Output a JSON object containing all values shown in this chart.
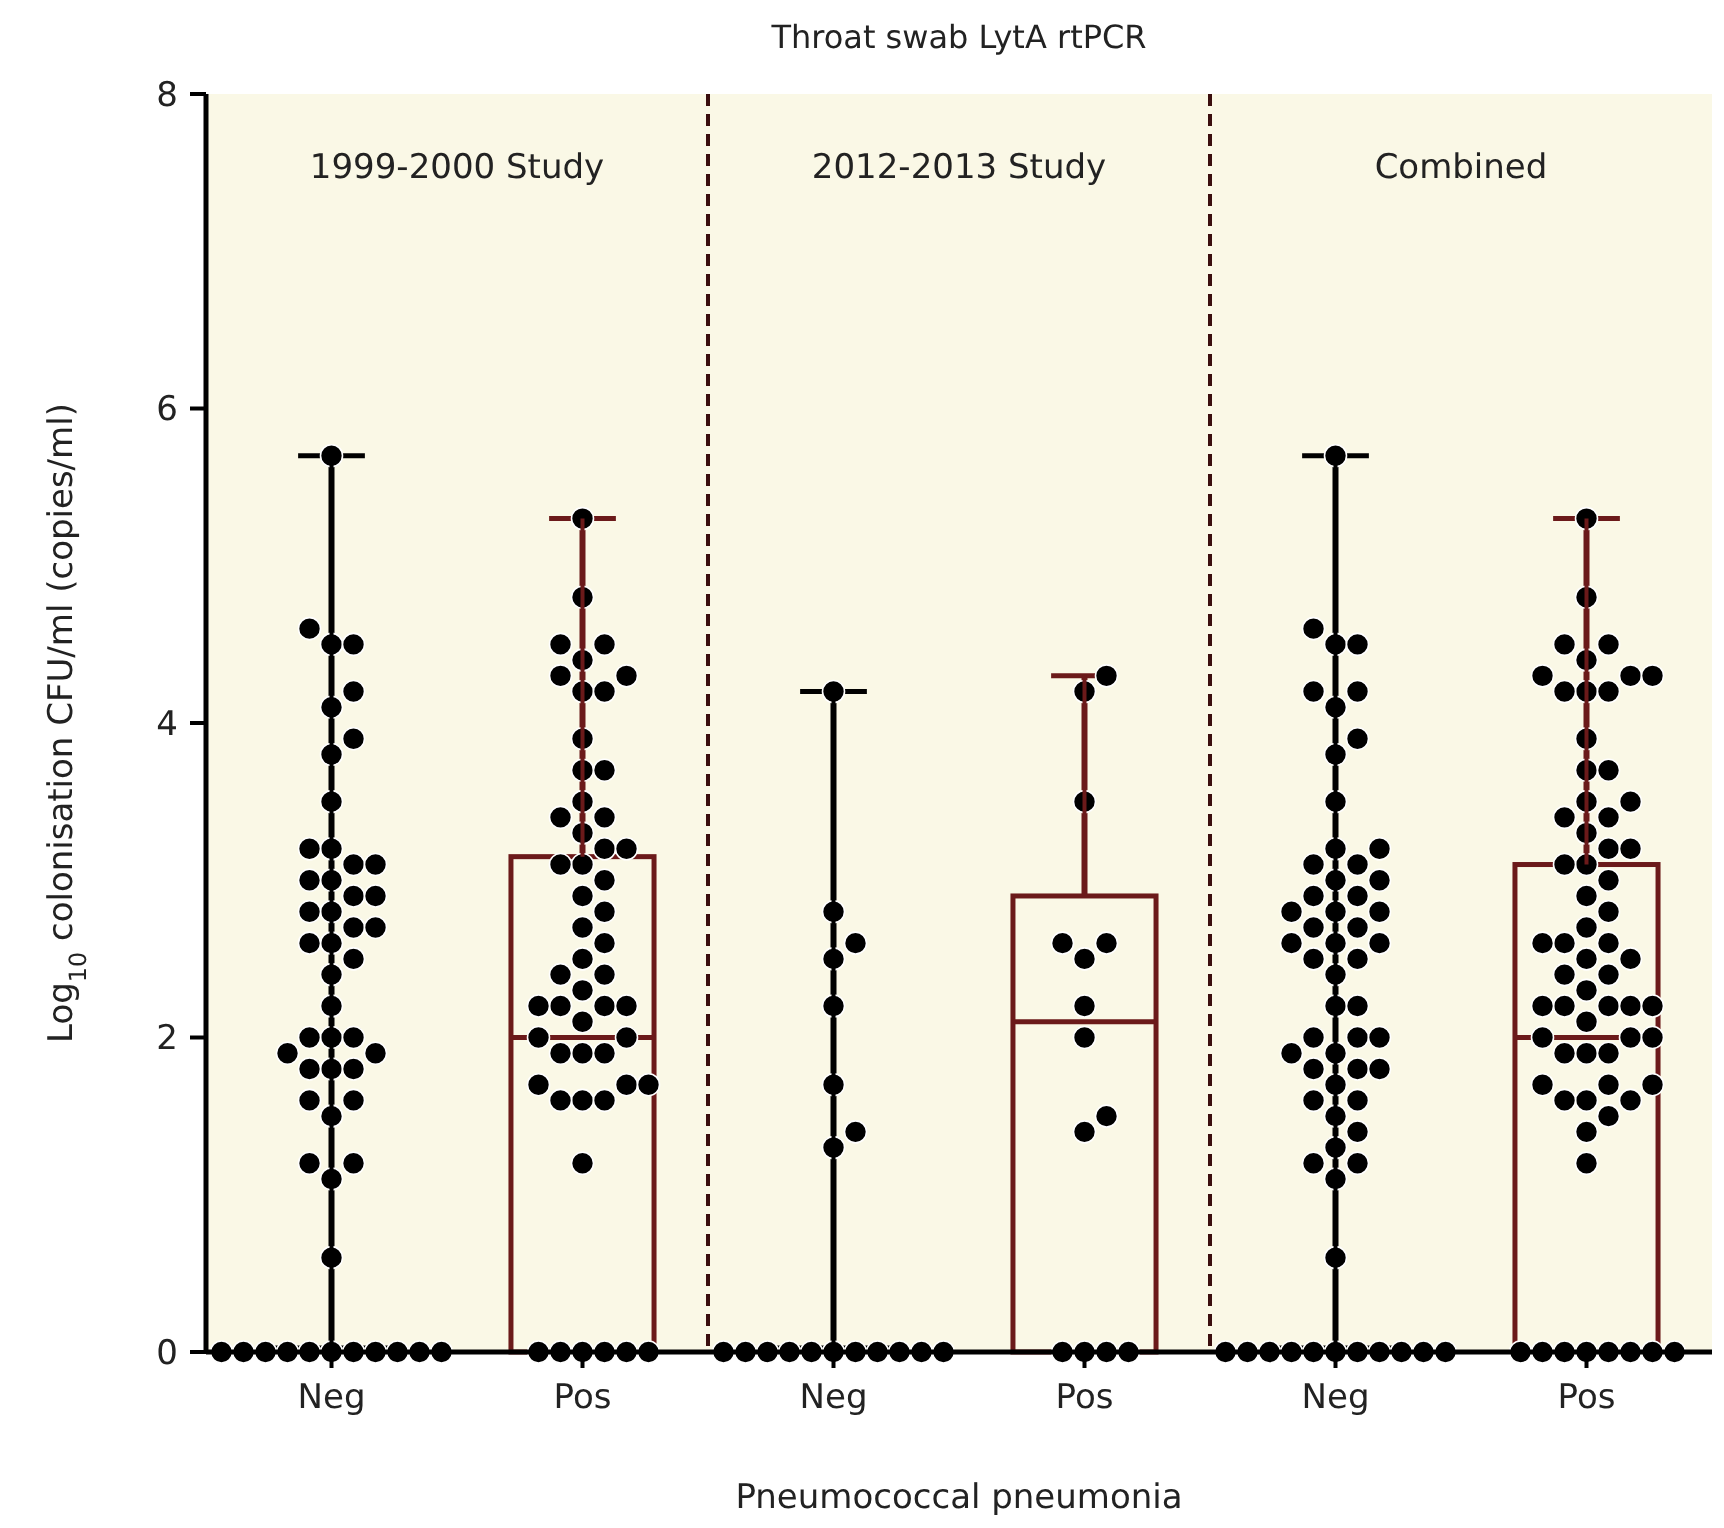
{
  "chart_data": [
    {
      "type": "box",
      "subtitle": "1999-2000 Study",
      "ylabel": "Log$_{10}$ colonisation CFU/ml (copies/ml)",
      "categories": [
        "Neg",
        "Pos"
      ],
      "ylim": [
        0,
        8
      ],
      "yticks": [
        0,
        2,
        4,
        6,
        8
      ],
      "series": [
        {
          "type": "box",
          "colors": [
            "#000000",
            "#6b1a1a"
          ],
          "boxes": [
            {
              "low": 0,
              "q1": 0,
              "median": 0,
              "q3": 0,
              "high": 5.7
            },
            {
              "low": 0,
              "q1": 0,
              "median": 2.0,
              "q3": 3.15,
              "high": 5.3
            }
          ]
        },
        {
          "type": "scatter",
          "color": "#000000",
          "x": [
            "Neg",
            "Neg",
            "Neg",
            "Neg",
            "Neg",
            "Neg",
            "Neg",
            "Neg",
            "Neg",
            "Neg",
            "Neg",
            "Neg",
            "Neg",
            "Neg",
            "Neg",
            "Neg",
            "Neg",
            "Neg",
            "Neg",
            "Neg",
            "Neg",
            "Neg",
            "Neg",
            "Neg",
            "Neg",
            "Neg",
            "Neg",
            "Neg",
            "Neg",
            "Neg",
            "Neg",
            "Neg",
            "Neg",
            "Neg",
            "Neg",
            "Neg",
            "Neg",
            "Neg",
            "Neg",
            "Neg",
            "Neg",
            "Neg",
            "Neg",
            "Neg",
            "Neg",
            "Neg",
            "Neg",
            "Neg",
            "Neg",
            "Neg",
            "Neg",
            "Neg"
          ],
          "values": [
            5.7,
            4.6,
            4.5,
            4.5,
            4.2,
            4.1,
            3.9,
            3.8,
            3.5,
            3.2,
            3.2,
            3.1,
            3.1,
            3.0,
            3.0,
            2.9,
            2.9,
            2.8,
            2.8,
            2.7,
            2.7,
            2.6,
            2.6,
            2.5,
            2.4,
            2.2,
            2.0,
            2.0,
            2.0,
            1.9,
            1.9,
            1.8,
            1.8,
            1.8,
            1.6,
            1.6,
            1.5,
            1.2,
            1.2,
            1.1,
            0.6,
            0,
            0,
            0,
            0,
            0,
            0,
            0,
            0,
            0,
            0,
            0
          ]
        },
        {
          "type": "scatter",
          "color": "#000000",
          "x": [
            "Pos",
            "Pos",
            "Pos",
            "Pos",
            "Pos",
            "Pos",
            "Pos",
            "Pos",
            "Pos",
            "Pos",
            "Pos",
            "Pos",
            "Pos",
            "Pos",
            "Pos",
            "Pos",
            "Pos",
            "Pos",
            "Pos",
            "Pos",
            "Pos",
            "Pos",
            "Pos",
            "Pos",
            "Pos",
            "Pos",
            "Pos",
            "Pos",
            "Pos",
            "Pos",
            "Pos",
            "Pos",
            "Pos",
            "Pos",
            "Pos",
            "Pos",
            "Pos",
            "Pos",
            "Pos",
            "Pos",
            "Pos",
            "Pos",
            "Pos",
            "Pos",
            "Pos",
            "Pos",
            "Pos",
            "Pos",
            "Pos",
            "Pos",
            "Pos",
            "Pos"
          ],
          "values": [
            5.3,
            4.8,
            4.5,
            4.5,
            4.4,
            4.3,
            4.3,
            4.2,
            4.2,
            3.9,
            3.7,
            3.7,
            3.5,
            3.4,
            3.4,
            3.3,
            3.2,
            3.2,
            3.1,
            3.1,
            3.0,
            2.9,
            2.8,
            2.7,
            2.6,
            2.5,
            2.4,
            2.4,
            2.3,
            2.2,
            2.2,
            2.2,
            2.2,
            2.1,
            2.0,
            2.0,
            1.9,
            1.9,
            1.9,
            1.7,
            1.7,
            1.7,
            1.6,
            1.6,
            1.6,
            1.2,
            0,
            0,
            0,
            0,
            0,
            0
          ]
        }
      ]
    },
    {
      "type": "box",
      "title": "Throat swab LytA rtPCR",
      "subtitle": "2012-2013 Study",
      "xlabel": "Pneumococcal pneumonia",
      "categories": [
        "Neg",
        "Pos"
      ],
      "ylim": [
        0,
        8
      ],
      "tick_labels": "x",
      "series": [
        {
          "type": "box",
          "colors": [
            "#000000",
            "#6b1a1a"
          ],
          "boxes": [
            {
              "low": 0,
              "q1": 0,
              "median": 0,
              "q3": 0,
              "high": 4.2
            },
            {
              "low": 0,
              "q1": 0,
              "median": 2.1,
              "q3": 2.9,
              "high": 4.3
            }
          ]
        },
        {
          "type": "scatter",
          "color": "#000000",
          "x": [
            "Neg",
            "Neg",
            "Neg",
            "Neg",
            "Neg",
            "Neg",
            "Neg",
            "Neg",
            "Neg",
            "Neg",
            "Neg",
            "Neg",
            "Neg",
            "Neg",
            "Neg",
            "Neg",
            "Neg",
            "Neg",
            "Neg"
          ],
          "values": [
            4.2,
            2.8,
            2.6,
            2.5,
            2.2,
            1.7,
            1.4,
            1.3,
            0,
            0,
            0,
            0,
            0,
            0,
            0,
            0,
            0,
            0,
            0
          ]
        },
        {
          "type": "scatter",
          "color": "#000000",
          "x": [
            "Pos",
            "Pos",
            "Pos",
            "Pos",
            "Pos",
            "Pos",
            "Pos",
            "Pos",
            "Pos",
            "Pos",
            "Pos",
            "Pos",
            "Pos",
            "Pos"
          ],
          "values": [
            4.3,
            4.2,
            3.5,
            2.6,
            2.6,
            2.5,
            2.2,
            2.0,
            1.5,
            1.4,
            0,
            0,
            0,
            0
          ]
        }
      ]
    },
    {
      "type": "box",
      "subtitle": "Combined",
      "categories": [
        "Neg",
        "Pos"
      ],
      "ylim": [
        0,
        8
      ],
      "tick_labels": "x",
      "series": [
        {
          "type": "box",
          "colors": [
            "#000000",
            "#6b1a1a"
          ],
          "boxes": [
            {
              "low": 0,
              "q1": 0,
              "median": 0,
              "q3": 0,
              "high": 5.7
            },
            {
              "low": 0,
              "q1": 0,
              "median": 2.0,
              "q3": 3.1,
              "high": 5.3
            }
          ]
        },
        {
          "type": "scatter",
          "color": "#000000",
          "x": [
            "Neg",
            "Neg",
            "Neg",
            "Neg",
            "Neg",
            "Neg",
            "Neg",
            "Neg",
            "Neg",
            "Neg",
            "Neg",
            "Neg",
            "Neg",
            "Neg",
            "Neg",
            "Neg",
            "Neg",
            "Neg",
            "Neg",
            "Neg",
            "Neg",
            "Neg",
            "Neg",
            "Neg",
            "Neg",
            "Neg",
            "Neg",
            "Neg",
            "Neg",
            "Neg",
            "Neg",
            "Neg",
            "Neg",
            "Neg",
            "Neg",
            "Neg",
            "Neg",
            "Neg",
            "Neg",
            "Neg",
            "Neg",
            "Neg",
            "Neg",
            "Neg",
            "Neg",
            "Neg",
            "Neg",
            "Neg",
            "Neg",
            "Neg",
            "Neg",
            "Neg",
            "Neg",
            "Neg",
            "Neg",
            "Neg",
            "Neg",
            "Neg",
            "Neg",
            "Neg"
          ],
          "values": [
            5.7,
            4.6,
            4.5,
            4.5,
            4.2,
            4.1,
            3.9,
            3.8,
            3.5,
            3.2,
            3.2,
            3.1,
            3.1,
            3.0,
            3.0,
            2.9,
            2.9,
            2.8,
            2.8,
            2.7,
            2.7,
            2.6,
            2.6,
            2.5,
            2.4,
            2.2,
            2.0,
            2.0,
            2.0,
            1.9,
            1.9,
            1.8,
            1.8,
            1.8,
            1.6,
            1.6,
            1.5,
            1.2,
            1.2,
            1.1,
            0.6,
            4.2,
            2.8,
            2.6,
            2.5,
            2.2,
            1.7,
            1.4,
            1.3,
            0,
            0,
            0,
            0,
            0,
            0,
            0,
            0,
            0,
            0,
            0
          ]
        },
        {
          "type": "scatter",
          "color": "#000000",
          "x": [
            "Pos",
            "Pos",
            "Pos",
            "Pos",
            "Pos",
            "Pos",
            "Pos",
            "Pos",
            "Pos",
            "Pos",
            "Pos",
            "Pos",
            "Pos",
            "Pos",
            "Pos",
            "Pos",
            "Pos",
            "Pos",
            "Pos",
            "Pos",
            "Pos",
            "Pos",
            "Pos",
            "Pos",
            "Pos",
            "Pos",
            "Pos",
            "Pos",
            "Pos",
            "Pos",
            "Pos",
            "Pos",
            "Pos",
            "Pos",
            "Pos",
            "Pos",
            "Pos",
            "Pos",
            "Pos",
            "Pos",
            "Pos",
            "Pos",
            "Pos",
            "Pos",
            "Pos",
            "Pos",
            "Pos",
            "Pos",
            "Pos",
            "Pos",
            "Pos",
            "Pos",
            "Pos",
            "Pos",
            "Pos",
            "Pos",
            "Pos",
            "Pos",
            "Pos",
            "Pos",
            "Pos",
            "Pos",
            "Pos",
            "Pos"
          ],
          "values": [
            5.3,
            4.8,
            4.5,
            4.5,
            4.4,
            4.3,
            4.3,
            4.2,
            4.2,
            3.9,
            3.7,
            3.7,
            3.5,
            3.4,
            3.4,
            3.3,
            3.2,
            3.2,
            3.1,
            3.1,
            3.0,
            2.9,
            2.8,
            2.7,
            2.6,
            2.5,
            2.4,
            2.4,
            2.3,
            2.2,
            2.2,
            2.2,
            2.2,
            2.1,
            2.0,
            2.0,
            1.9,
            1.9,
            1.9,
            1.7,
            1.7,
            1.7,
            1.6,
            1.6,
            1.6,
            1.2,
            4.3,
            4.2,
            3.5,
            2.6,
            2.6,
            2.5,
            2.2,
            2.0,
            1.5,
            1.4,
            0,
            0,
            0,
            0,
            0,
            0,
            0,
            0
          ]
        }
      ]
    }
  ]
}
